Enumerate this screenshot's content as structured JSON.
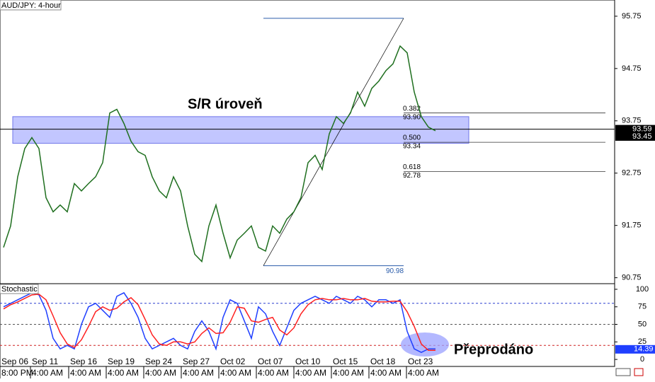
{
  "chart_data": [
    {
      "type": "line",
      "title": "AUD/JPY: 4-hour",
      "annotation": "S/R úroveň",
      "xlim": [
        -0.5,
        86.3
      ],
      "ylim": [
        90.65,
        96.06
      ],
      "yticks": [
        95.75,
        94.75,
        93.75,
        92.75,
        91.75,
        90.75
      ],
      "series": [
        {
          "color": "#1f6f1f",
          "values": [
            91.33,
            91.74,
            92.68,
            93.22,
            93.43,
            93.22,
            92.28,
            92.01,
            92.14,
            92.01,
            92.55,
            92.41,
            92.55,
            92.68,
            92.95,
            93.9,
            93.97,
            93.7,
            93.36,
            93.16,
            93.09,
            92.68,
            92.41,
            92.28,
            92.68,
            92.41,
            91.74,
            91.2,
            91.06,
            91.74,
            92.14,
            91.6,
            91.13,
            91.47,
            91.6,
            91.74,
            91.33,
            91.26,
            91.74,
            91.6,
            91.87,
            92.01,
            92.28,
            92.95,
            93.09,
            92.82,
            93.5,
            93.83,
            93.7,
            93.9,
            94.3,
            94.03,
            94.37,
            94.51,
            94.71,
            94.84,
            95.18,
            95.05,
            94.3,
            93.83,
            93.63,
            93.56
          ]
        }
      ],
      "sr_zone": [
        93.32,
        93.83
      ],
      "sr_level": 93.59,
      "current_price": 93.45,
      "fib_high": 95.71,
      "fib_low": 90.98,
      "fib_levels": [
        {
          "ratio": 0.382,
          "price": {
            "value": 93.9,
            "label": "93.90"
          }
        },
        {
          "ratio": {
            "value": 0.5,
            "label": "0.500"
          },
          "price": 93.34
        },
        {
          "ratio": 0.618,
          "price": 92.78
        }
      ],
      "xticks": [
        {
          "value": -0.5,
          "label": "Sep 06"
        },
        {
          "value": 3.8,
          "label": "Sep 11"
        },
        {
          "value": 9.2,
          "label": "Sep 16"
        },
        {
          "value": 14.5,
          "label": "Sep 19"
        },
        {
          "value": 19.8,
          "label": "Sep 24"
        },
        {
          "value": 25.1,
          "label": "Sep 27"
        },
        {
          "value": 30.4,
          "label": "Oct 02"
        },
        {
          "value": 35.7,
          "label": "Oct 07"
        },
        {
          "value": 41,
          "label": "Oct 10"
        },
        {
          "value": 46.3,
          "label": "Oct 15"
        },
        {
          "value": 51.6,
          "label": "Oct 18"
        },
        {
          "value": 56.9,
          "label": "Oct 23"
        }
      ],
      "xtick_times": [
        "8:00 PM",
        "4:00 AM",
        "4:00 AM",
        "4:00 AM",
        "4:00 AM",
        "4:00 AM",
        "4:00 AM",
        "4:00 AM",
        "4:00 AM",
        "4:00 AM",
        "4:00 AM",
        "4:00 AM"
      ]
    },
    {
      "type": "line",
      "title": "Stochastic",
      "annotation": "Přeprodáno",
      "ylim": [
        -10,
        107
      ],
      "yticks": [
        100,
        75,
        50,
        25,
        0
      ],
      "levels": [
        80,
        50,
        20
      ],
      "current_value": 14.39,
      "series": [
        {
          "color": "#1f3fff",
          "values": [
            75,
            80,
            85,
            90,
            95,
            92,
            70,
            30,
            15,
            20,
            15,
            50,
            75,
            80,
            70,
            60,
            90,
            95,
            80,
            60,
            30,
            15,
            20,
            25,
            30,
            20,
            15,
            40,
            55,
            40,
            15,
            60,
            85,
            80,
            55,
            30,
            75,
            65,
            40,
            20,
            45,
            70,
            80,
            85,
            90,
            85,
            80,
            90,
            85,
            80,
            90,
            85,
            75,
            85,
            85,
            80,
            85,
            40,
            15,
            10,
            15,
            15
          ]
        },
        {
          "color": "#ff2020",
          "values": [
            72,
            78,
            82,
            87,
            92,
            93,
            85,
            62,
            38,
            22,
            17,
            28,
            47,
            68,
            75,
            70,
            73,
            82,
            88,
            78,
            57,
            35,
            22,
            20,
            25,
            25,
            22,
            25,
            37,
            45,
            37,
            38,
            53,
            75,
            73,
            55,
            53,
            57,
            60,
            42,
            35,
            45,
            65,
            78,
            85,
            87,
            85,
            85,
            87,
            85,
            85,
            87,
            83,
            82,
            82,
            83,
            83,
            68,
            47,
            22,
            13,
            13
          ]
        }
      ]
    }
  ]
}
